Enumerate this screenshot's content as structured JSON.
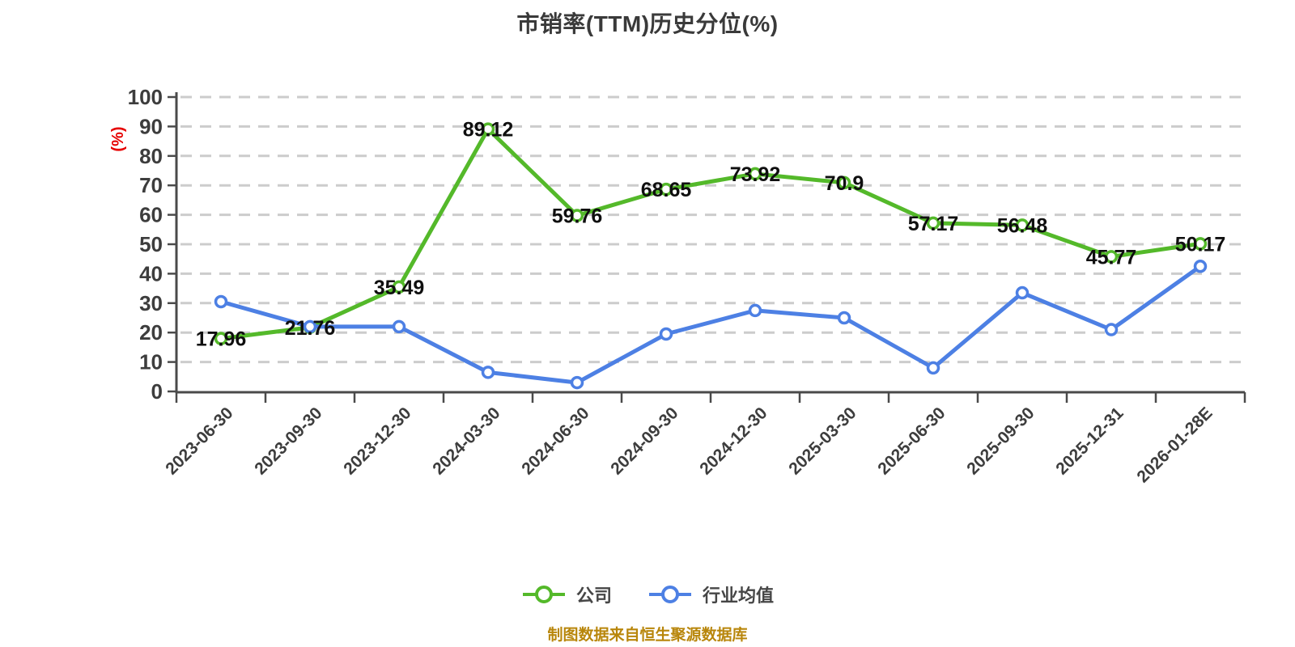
{
  "title": "市销率(TTM)历史分位(%)",
  "source_note": "制图数据来自恒生聚源数据库",
  "colors": {
    "company_line": "#54b92a",
    "industry_line": "#4d80e4",
    "axis": "#4a4a4a",
    "tick_label": "#3d3d3d",
    "grid_line": "#cccccc",
    "data_label": "#0f0f0f",
    "y_axis_name": "#e60000",
    "marker_fill": "#ffffff",
    "source_note": "#b8860b",
    "background": "#ffffff"
  },
  "chart_data": {
    "type": "line",
    "title": "市销率(TTM)历史分位(%)",
    "xlabel": "",
    "ylabel": "(%)",
    "ylim": [
      0,
      100
    ],
    "ytick_step": 10,
    "yticks": [
      0,
      10,
      20,
      30,
      40,
      50,
      60,
      70,
      80,
      90,
      100
    ],
    "grid": "horizontal dashed gridlines",
    "legend_position": "bottom",
    "x_label_rotation_deg": -45,
    "categories": [
      "2023-06-30",
      "2023-09-30",
      "2023-12-30",
      "2024-03-30",
      "2024-06-30",
      "2024-09-30",
      "2024-12-30",
      "2025-03-30",
      "2025-06-30",
      "2025-09-30",
      "2025-12-31",
      "2026-01-28E"
    ],
    "series": [
      {
        "key": "company",
        "name": "公司",
        "color": "#54b92a",
        "show_point_labels": true,
        "values": [
          17.96,
          21.76,
          35.49,
          89.12,
          59.76,
          68.65,
          73.92,
          70.9,
          57.17,
          56.48,
          45.77,
          50.17
        ]
      },
      {
        "key": "industry-average",
        "name": "行业均值",
        "color": "#4d80e4",
        "show_point_labels": false,
        "values_estimated_from_gridlines": true,
        "values": [
          30.5,
          22,
          22,
          6.5,
          3,
          19.5,
          27.5,
          25,
          8,
          33.5,
          21,
          42.5
        ]
      }
    ]
  }
}
